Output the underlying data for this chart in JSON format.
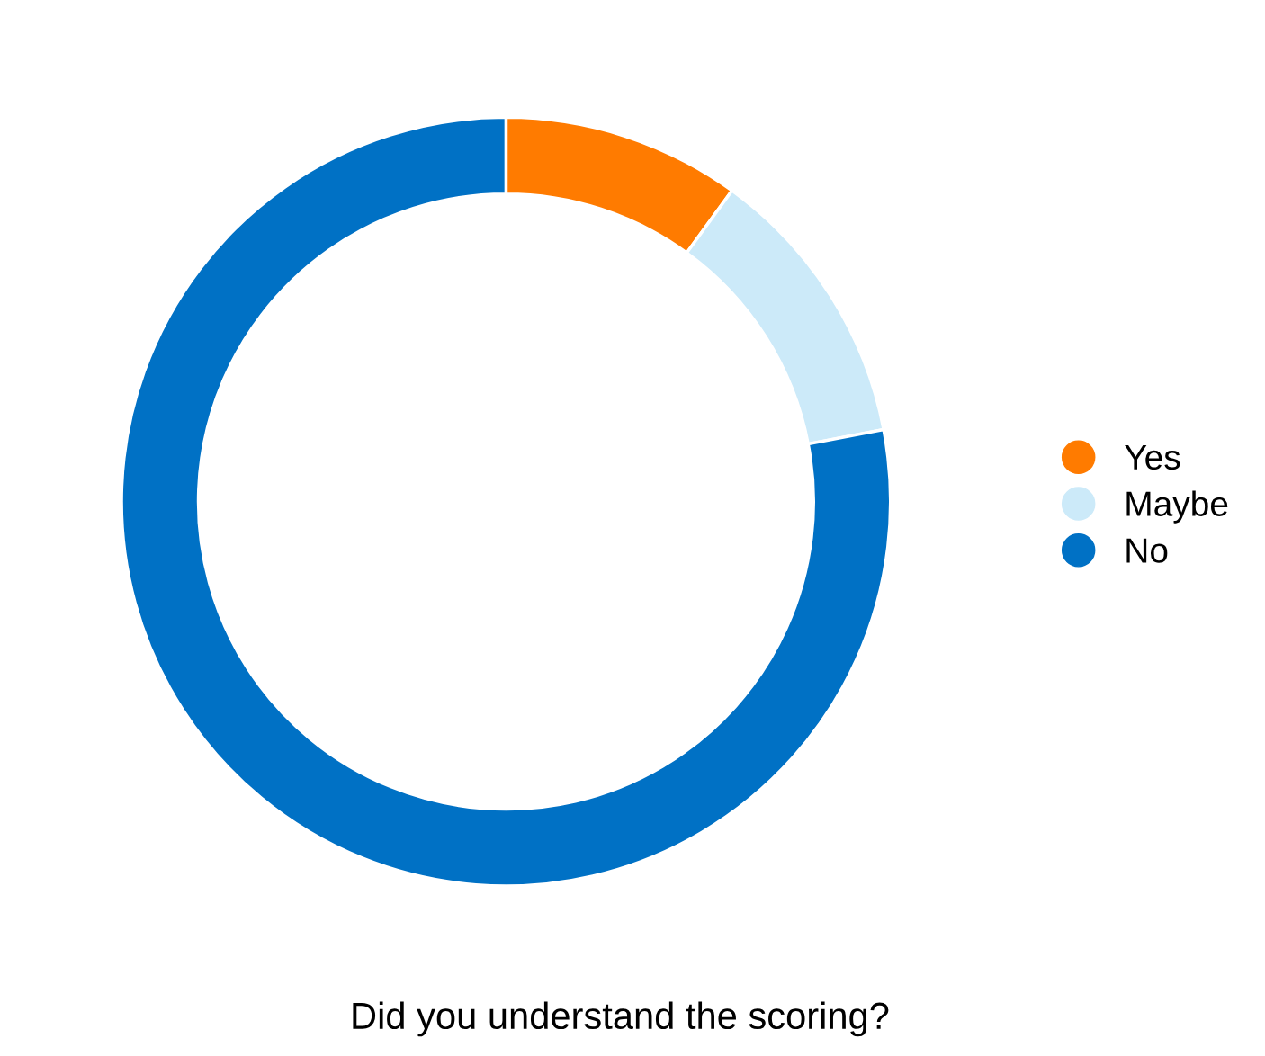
{
  "chart_data": {
    "type": "donut",
    "title": "Did you understand the scoring?",
    "categories": [
      "Yes",
      "Maybe",
      "No"
    ],
    "values": [
      10,
      12,
      78
    ],
    "colors": [
      "#ff7b00",
      "#cceaf9",
      "#0071c5"
    ],
    "legend": "right"
  }
}
